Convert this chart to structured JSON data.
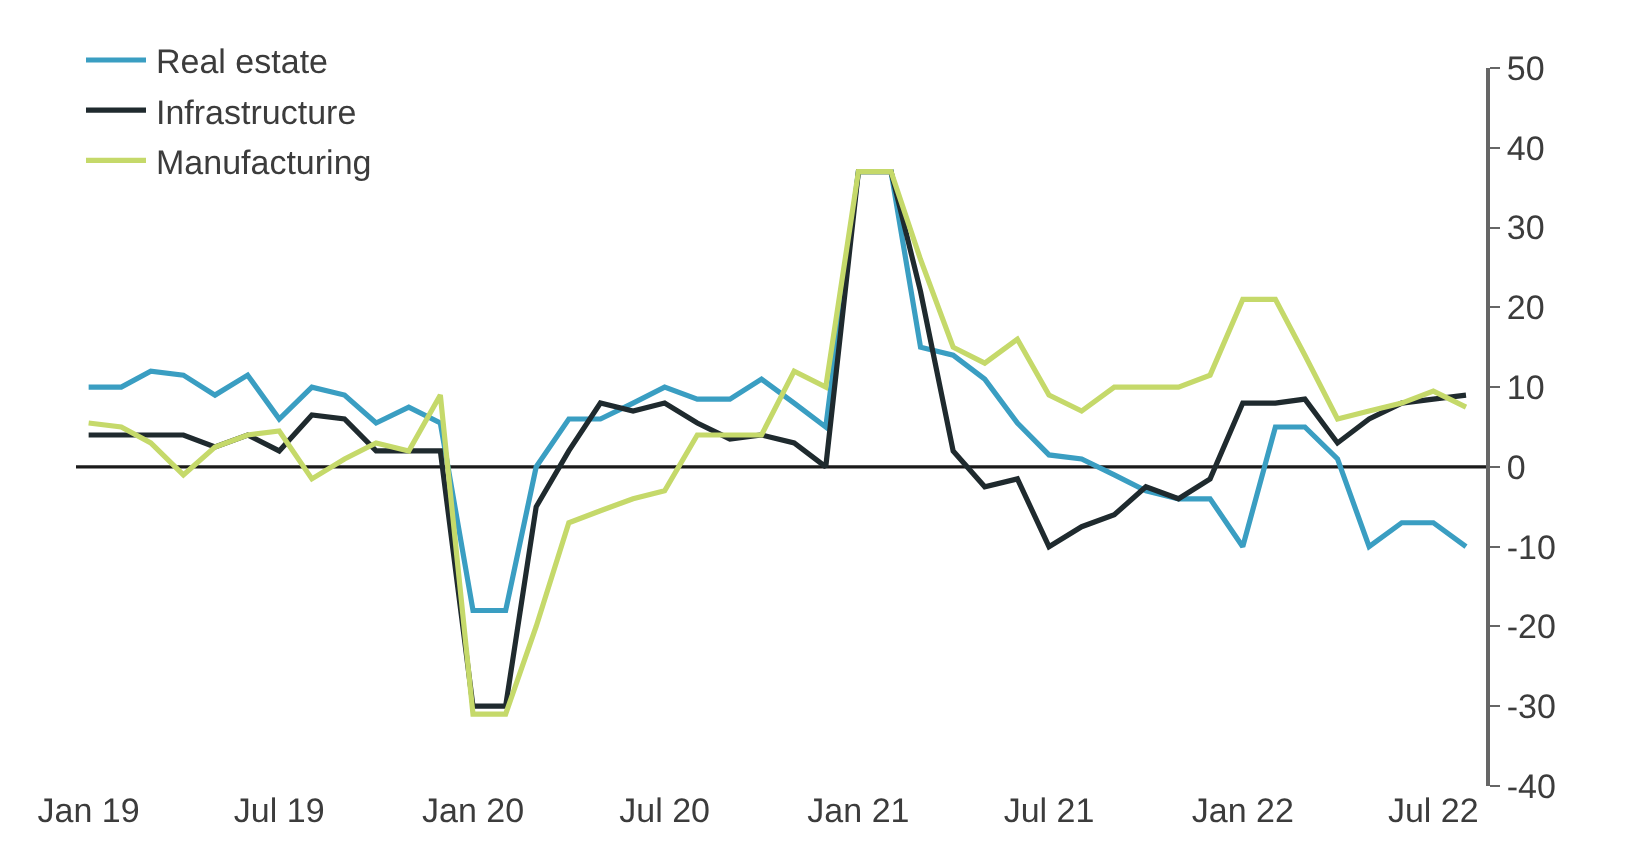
{
  "chart_data": {
    "type": "line",
    "x": [
      "2019-01",
      "2019-02",
      "2019-03",
      "2019-04",
      "2019-05",
      "2019-06",
      "2019-07",
      "2019-08",
      "2019-09",
      "2019-10",
      "2019-11",
      "2019-12",
      "2020-01",
      "2020-02",
      "2020-03",
      "2020-04",
      "2020-05",
      "2020-06",
      "2020-07",
      "2020-08",
      "2020-09",
      "2020-10",
      "2020-11",
      "2020-12",
      "2021-01",
      "2021-02",
      "2021-03",
      "2021-04",
      "2021-05",
      "2021-06",
      "2021-07",
      "2021-08",
      "2021-09",
      "2021-10",
      "2021-11",
      "2021-12",
      "2022-01",
      "2022-02",
      "2022-03",
      "2022-04",
      "2022-05",
      "2022-06",
      "2022-07",
      "2022-08"
    ],
    "series": [
      {
        "name": "Real estate",
        "color": "#3a9ec2",
        "values": [
          10,
          10,
          12,
          11.5,
          9,
          11.5,
          6,
          10,
          9,
          5.5,
          7.5,
          5.5,
          -18,
          -18,
          0,
          6,
          6,
          8,
          10,
          8.5,
          8.5,
          11,
          8,
          5,
          37,
          37,
          15,
          14,
          11,
          5.5,
          1.5,
          1,
          -1,
          -3,
          -4,
          -4,
          -10,
          5,
          5,
          1,
          -10,
          -7,
          -7,
          -10
        ]
      },
      {
        "name": "Infrastructure",
        "color": "#1f2a2e",
        "values": [
          4,
          4,
          4,
          4,
          2.5,
          4,
          2,
          6.5,
          6,
          2,
          2,
          2,
          -30,
          -30,
          -5,
          2,
          8,
          7,
          8,
          5.5,
          3.5,
          4,
          3,
          0,
          37,
          37,
          22,
          2,
          -2.5,
          -1.5,
          -10,
          -7.5,
          -6,
          -2.5,
          -4,
          -1.5,
          8,
          8,
          8.5,
          3,
          6,
          8,
          8.5,
          9
        ]
      },
      {
        "name": "Manufacturing",
        "color": "#c5d96a",
        "values": [
          5.5,
          5,
          3,
          -1,
          2.5,
          4,
          4.5,
          -1.5,
          1,
          3,
          2,
          9,
          -31,
          -31,
          -20,
          -7,
          -5.5,
          -4,
          -3,
          4,
          4,
          4,
          12,
          10,
          37,
          37,
          26,
          15,
          13,
          16,
          9,
          7,
          10,
          10,
          10,
          11.5,
          21,
          21,
          14,
          6,
          7,
          8,
          9.5,
          7.5
        ]
      }
    ],
    "xlim": [
      "2018-12-20",
      "2022-08-20"
    ],
    "xticks": [
      {
        "value": "2019-01",
        "label": "Jan 19"
      },
      {
        "value": "2019-07",
        "label": "Jul 19"
      },
      {
        "value": "2020-01",
        "label": "Jan 20"
      },
      {
        "value": "2020-07",
        "label": "Jul 20"
      },
      {
        "value": "2021-01",
        "label": "Jan 21"
      },
      {
        "value": "2021-07",
        "label": "Jul 21"
      },
      {
        "value": "2022-01",
        "label": "Jan 22"
      },
      {
        "value": "2022-07",
        "label": "Jul 22"
      }
    ],
    "ylim": [
      -40,
      50
    ],
    "yticks": [
      -40,
      -30,
      -20,
      -10,
      0,
      10,
      20,
      30,
      40,
      50
    ],
    "ref_lines": [
      {
        "axis": "y",
        "value": 0,
        "color": "#1a1a1a"
      }
    ],
    "legend": "top left",
    "grid": false,
    "line_style": "solid",
    "marker": "none"
  }
}
